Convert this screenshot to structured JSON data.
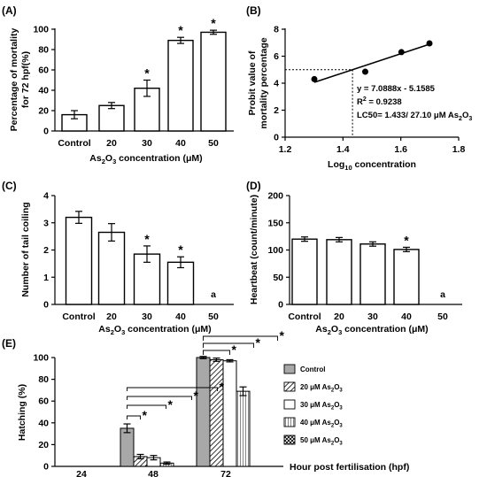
{
  "chart_data": [
    {
      "id": "A",
      "panel_label": "(A)",
      "type": "bar",
      "categories": [
        "Control",
        "20",
        "30",
        "40",
        "50"
      ],
      "values": [
        16,
        25,
        42,
        89,
        97
      ],
      "errors": [
        4,
        3,
        8,
        3,
        2
      ],
      "significance": [
        "",
        "",
        "*",
        "*",
        "*"
      ],
      "ylim": [
        0,
        100
      ],
      "yticks": [
        "0",
        "20",
        "40",
        "60",
        "80",
        "100"
      ],
      "ylabel_line1": "Percentage of mortality",
      "ylabel_line2": "for 72 hpf(%)",
      "xlabel": {
        "pre": "As",
        "sub1": "2",
        "mid": "O",
        "sub2": "3",
        "post": " concentration (μM)"
      }
    },
    {
      "id": "B",
      "panel_label": "(B)",
      "type": "scatter",
      "points": [
        {
          "x": 1.301,
          "y": 4.3
        },
        {
          "x": 1.477,
          "y": 4.85
        },
        {
          "x": 1.602,
          "y": 6.3
        },
        {
          "x": 1.699,
          "y": 6.95
        }
      ],
      "fit": {
        "slope": 7.0888,
        "intercept": -5.1585
      },
      "lc50_log": 1.433,
      "xlim": [
        1.2,
        1.8
      ],
      "ylim": [
        0,
        8
      ],
      "xticks": [
        "1.2",
        "1.4",
        "1.6",
        "1.8"
      ],
      "yticks": [
        "0",
        "2",
        "4",
        "6",
        "8"
      ],
      "ylabel_line1": "Probit value of",
      "ylabel_line2": "mortality percentage",
      "xlabel": {
        "pre": "Log",
        "sub": "10",
        "post": " concentration"
      },
      "equation": "y = 7.0888x - 5.1585",
      "r2": {
        "pre": "R",
        "sup": "2",
        "post": " = 0.9238"
      },
      "lc50": {
        "text": "LC50= 1.433/ 27.10 μM As",
        "sub1": "2",
        "mid": "O",
        "sub2": "3"
      }
    },
    {
      "id": "C",
      "panel_label": "(C)",
      "type": "bar",
      "categories": [
        "Control",
        "20",
        "30",
        "40",
        "50"
      ],
      "values": [
        3.2,
        2.65,
        1.85,
        1.55,
        null
      ],
      "errors": [
        0.22,
        0.32,
        0.3,
        0.2,
        null
      ],
      "significance": [
        "",
        "",
        "*",
        "*",
        ""
      ],
      "no_data_marker": "a",
      "ylim": [
        0,
        4
      ],
      "yticks": [
        "0",
        "1",
        "2",
        "3",
        "4"
      ],
      "ylabel": "Number of tail coiling",
      "xlabel": {
        "pre": "As",
        "sub1": "2",
        "mid": "O",
        "sub2": "3",
        "post": " concentration (μM)"
      }
    },
    {
      "id": "D",
      "panel_label": "(D)",
      "type": "bar",
      "categories": [
        "Control",
        "20",
        "30",
        "40",
        "50"
      ],
      "values": [
        120,
        119,
        111,
        101,
        null
      ],
      "errors": [
        4,
        4,
        4,
        4,
        null
      ],
      "significance": [
        "",
        "",
        "",
        "*",
        ""
      ],
      "no_data_marker": "a",
      "ylim": [
        0,
        200
      ],
      "yticks": [
        "0",
        "50",
        "100",
        "150",
        "200"
      ],
      "ylabel": "Heartbeat (count/minute)",
      "xlabel": {
        "pre": "As",
        "sub1": "2",
        "mid": "O",
        "sub2": "3",
        "post": " concentration (μM)"
      }
    },
    {
      "id": "E",
      "panel_label": "(E)",
      "type": "bar",
      "categories": [
        "24",
        "48",
        "72"
      ],
      "series": [
        {
          "name": "Control",
          "pattern": "control",
          "values": [
            0,
            35,
            100
          ],
          "errors": [
            0,
            4,
            1
          ]
        },
        {
          "name": "20 μM As",
          "pattern": "diag",
          "values": [
            0,
            9,
            98
          ],
          "errors": [
            0,
            2,
            1.5
          ]
        },
        {
          "name": "30 μM As",
          "pattern": "white",
          "values": [
            0,
            8,
            97
          ],
          "errors": [
            0,
            2,
            1
          ]
        },
        {
          "name": "40 μM As",
          "pattern": "vert",
          "values": [
            0,
            3,
            69
          ],
          "errors": [
            0,
            1,
            4
          ]
        },
        {
          "name": "50 μM As",
          "pattern": "cross",
          "values": [
            0,
            0,
            0
          ],
          "errors": [
            0,
            0,
            0
          ]
        }
      ],
      "legend_sub1": "2",
      "legend_mid": "O",
      "legend_sub2": "3",
      "ylim": [
        0,
        100
      ],
      "yticks": [
        "0",
        "20",
        "40",
        "60",
        "80",
        "100"
      ],
      "ylabel": "Hatching (%)",
      "xlabel": "Hour post fertilisation (hpf)",
      "star": "*",
      "brackets_48": [
        "*",
        "*",
        "*",
        "*"
      ],
      "brackets_72": [
        "*",
        "*",
        "*"
      ]
    }
  ]
}
